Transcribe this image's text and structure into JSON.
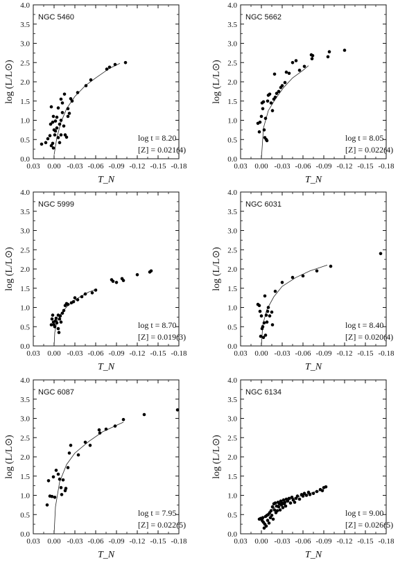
{
  "chart_data": [
    {
      "type": "scatter",
      "title": "NGC 5460",
      "xlabel": "T_N",
      "ylabel": "log (L/L⊙)",
      "xlim": [
        0.03,
        -0.18
      ],
      "ylim": [
        0.0,
        4.0
      ],
      "xticks": [
        "0.03",
        "0.00",
        "-0.03",
        "-0.06",
        "-0.09",
        "-0.12",
        "-0.15",
        "-0.18"
      ],
      "yticks": [
        "0.0",
        "0.5",
        "1.0",
        "1.5",
        "2.0",
        "2.5",
        "3.0",
        "3.5",
        "4.0"
      ],
      "annotation": {
        "age_label": "log t = 8.20",
        "z_label": "[Z] = 0.021(4)"
      },
      "points": [
        [
          0.018,
          0.38
        ],
        [
          0.012,
          0.42
        ],
        [
          0.009,
          0.52
        ],
        [
          0.006,
          0.6
        ],
        [
          0.004,
          0.34
        ],
        [
          0.001,
          0.28
        ],
        [
          -0.001,
          0.62
        ],
        [
          0.002,
          0.4
        ],
        [
          0.005,
          0.9
        ],
        [
          0.002,
          0.95
        ],
        [
          0.0,
          0.75
        ],
        [
          -0.002,
          0.98
        ],
        [
          -0.004,
          0.8
        ],
        [
          -0.006,
          0.55
        ],
        [
          -0.008,
          0.9
        ],
        [
          -0.01,
          1.0
        ],
        [
          -0.012,
          1.2
        ],
        [
          -0.014,
          0.85
        ],
        [
          -0.016,
          0.62
        ],
        [
          -0.018,
          0.56
        ],
        [
          -0.01,
          0.62
        ],
        [
          -0.008,
          0.42
        ],
        [
          -0.006,
          1.32
        ],
        [
          -0.012,
          1.45
        ],
        [
          -0.015,
          1.68
        ],
        [
          0.004,
          1.35
        ],
        [
          0.001,
          1.1
        ],
        [
          -0.004,
          1.08
        ],
        [
          -0.01,
          1.55
        ],
        [
          -0.02,
          1.3
        ],
        [
          -0.022,
          1.18
        ],
        [
          -0.024,
          1.56
        ],
        [
          -0.026,
          1.5
        ],
        [
          -0.02,
          1.1
        ],
        [
          -0.002,
          0.72
        ],
        [
          -0.034,
          1.72
        ],
        [
          -0.046,
          1.9
        ],
        [
          -0.053,
          2.05
        ],
        [
          -0.076,
          2.33
        ],
        [
          -0.08,
          2.38
        ],
        [
          -0.088,
          2.45
        ],
        [
          -0.103,
          2.5
        ]
      ],
      "curve": [
        [
          0.0,
          0.1
        ],
        [
          -0.004,
          0.55
        ],
        [
          -0.01,
          0.95
        ],
        [
          -0.018,
          1.3
        ],
        [
          -0.03,
          1.62
        ],
        [
          -0.045,
          1.9
        ],
        [
          -0.06,
          2.1
        ],
        [
          -0.08,
          2.35
        ],
        [
          -0.095,
          2.48
        ]
      ]
    },
    {
      "type": "scatter",
      "title": "NGC 5662",
      "xlabel": "T_N",
      "ylabel": "log (L/L⊙)",
      "xlim": [
        0.03,
        -0.18
      ],
      "ylim": [
        0.0,
        4.0
      ],
      "xticks": [
        "0.03",
        "0.00",
        "-0.03",
        "-0.06",
        "-0.09",
        "-0.12",
        "-0.15",
        "-0.18"
      ],
      "yticks": [
        "0.0",
        "0.5",
        "1.0",
        "1.5",
        "2.0",
        "2.5",
        "3.0",
        "3.5",
        "4.0"
      ],
      "annotation": {
        "age_label": "log t = 8.05",
        "z_label": "[Z] = 0.022(4)"
      },
      "points": [
        [
          0.005,
          0.92
        ],
        [
          0.003,
          0.7
        ],
        [
          0.002,
          0.95
        ],
        [
          0.0,
          1.1
        ],
        [
          -0.002,
          1.3
        ],
        [
          -0.001,
          1.45
        ],
        [
          -0.003,
          1.48
        ],
        [
          -0.004,
          0.75
        ],
        [
          -0.005,
          0.55
        ],
        [
          -0.007,
          0.5
        ],
        [
          -0.008,
          0.47
        ],
        [
          -0.006,
          1.05
        ],
        [
          -0.009,
          1.5
        ],
        [
          -0.01,
          1.65
        ],
        [
          -0.012,
          1.68
        ],
        [
          -0.014,
          1.45
        ],
        [
          -0.016,
          1.25
        ],
        [
          -0.018,
          1.55
        ],
        [
          -0.02,
          1.6
        ],
        [
          -0.022,
          1.7
        ],
        [
          -0.019,
          2.2
        ],
        [
          -0.025,
          1.75
        ],
        [
          -0.028,
          1.85
        ],
        [
          -0.03,
          1.9
        ],
        [
          -0.034,
          1.98
        ],
        [
          -0.036,
          2.25
        ],
        [
          -0.04,
          2.22
        ],
        [
          -0.045,
          2.5
        ],
        [
          -0.05,
          2.55
        ],
        [
          -0.055,
          2.3
        ],
        [
          -0.062,
          2.4
        ],
        [
          -0.072,
          2.7
        ],
        [
          -0.074,
          2.68
        ],
        [
          -0.073,
          2.6
        ],
        [
          -0.096,
          2.65
        ],
        [
          -0.098,
          2.78
        ],
        [
          -0.12,
          2.82
        ]
      ],
      "curve": [
        [
          0.0,
          0.0
        ],
        [
          -0.003,
          0.8
        ],
        [
          -0.01,
          1.25
        ],
        [
          -0.02,
          1.55
        ],
        [
          -0.032,
          1.85
        ],
        [
          -0.045,
          2.1
        ],
        [
          -0.06,
          2.3
        ],
        [
          -0.068,
          2.42
        ]
      ]
    },
    {
      "type": "scatter",
      "title": "NGC 5999",
      "xlabel": "T_N",
      "ylabel": "log (L/L⊙)",
      "xlim": [
        0.03,
        -0.18
      ],
      "ylim": [
        0.0,
        4.0
      ],
      "xticks": [
        "0.03",
        "0.00",
        "-0.03",
        "-0.06",
        "-0.09",
        "-0.12",
        "-0.15",
        "-0.18"
      ],
      "yticks": [
        "0.0",
        "0.5",
        "1.0",
        "1.5",
        "2.0",
        "2.5",
        "3.0",
        "3.5",
        "4.0"
      ],
      "annotation": {
        "age_label": "log t = 8.70",
        "z_label": "[Z] = 0.019(3)"
      },
      "points": [
        [
          0.004,
          0.55
        ],
        [
          0.003,
          0.7
        ],
        [
          0.002,
          0.8
        ],
        [
          0.001,
          0.62
        ],
        [
          0.0,
          0.55
        ],
        [
          -0.001,
          0.5
        ],
        [
          -0.002,
          0.65
        ],
        [
          -0.003,
          0.72
        ],
        [
          -0.004,
          0.6
        ],
        [
          -0.006,
          0.45
        ],
        [
          -0.007,
          0.35
        ],
        [
          -0.006,
          0.8
        ],
        [
          -0.008,
          0.7
        ],
        [
          -0.009,
          0.78
        ],
        [
          -0.01,
          0.62
        ],
        [
          -0.012,
          0.85
        ],
        [
          -0.014,
          0.92
        ],
        [
          -0.016,
          1.05
        ],
        [
          -0.018,
          1.1
        ],
        [
          -0.02,
          1.08
        ],
        [
          -0.025,
          1.12
        ],
        [
          -0.028,
          1.15
        ],
        [
          -0.03,
          1.25
        ],
        [
          -0.034,
          1.2
        ],
        [
          -0.04,
          1.28
        ],
        [
          -0.045,
          1.35
        ],
        [
          -0.055,
          1.38
        ],
        [
          -0.06,
          1.45
        ],
        [
          -0.083,
          1.72
        ],
        [
          -0.085,
          1.68
        ],
        [
          -0.09,
          1.65
        ],
        [
          -0.098,
          1.75
        ],
        [
          -0.1,
          1.7
        ],
        [
          -0.12,
          1.85
        ],
        [
          -0.138,
          1.92
        ],
        [
          -0.14,
          1.95
        ]
      ],
      "curve": [
        [
          0.0,
          0.0
        ],
        [
          -0.001,
          0.35
        ],
        [
          -0.004,
          0.62
        ],
        [
          -0.01,
          0.85
        ],
        [
          -0.02,
          1.05
        ],
        [
          -0.035,
          1.25
        ],
        [
          -0.05,
          1.4
        ],
        [
          -0.062,
          1.48
        ]
      ]
    },
    {
      "type": "scatter",
      "title": "NGC 6031",
      "xlabel": "T_N",
      "ylabel": "log (L/L⊙)",
      "xlim": [
        0.03,
        -0.18
      ],
      "ylim": [
        0.0,
        4.0
      ],
      "xticks": [
        "0.03",
        "0.00",
        "-0.03",
        "-0.06",
        "-0.09",
        "-0.12",
        "-0.15",
        "-0.18"
      ],
      "yticks": [
        "0.0",
        "0.5",
        "1.0",
        "1.5",
        "2.0",
        "2.5",
        "3.0",
        "3.5",
        "4.0"
      ],
      "annotation": {
        "age_label": "log t = 8.40",
        "z_label": "[Z] = 0.020(4)"
      },
      "points": [
        [
          0.005,
          1.08
        ],
        [
          0.003,
          1.05
        ],
        [
          0.002,
          0.9
        ],
        [
          0.001,
          0.25
        ],
        [
          0.0,
          0.78
        ],
        [
          -0.001,
          0.45
        ],
        [
          -0.002,
          0.5
        ],
        [
          -0.003,
          0.22
        ],
        [
          -0.004,
          0.6
        ],
        [
          -0.005,
          1.3
        ],
        [
          -0.006,
          0.28
        ],
        [
          -0.007,
          0.8
        ],
        [
          -0.008,
          0.62
        ],
        [
          -0.009,
          0.9
        ],
        [
          -0.01,
          1.0
        ],
        [
          -0.012,
          0.78
        ],
        [
          -0.015,
          0.88
        ],
        [
          -0.016,
          0.55
        ],
        [
          -0.02,
          1.42
        ],
        [
          -0.03,
          1.65
        ],
        [
          -0.045,
          1.78
        ],
        [
          -0.06,
          1.82
        ],
        [
          -0.08,
          1.95
        ],
        [
          -0.1,
          2.07
        ],
        [
          -0.172,
          2.4
        ]
      ],
      "curve": [
        [
          0.0,
          0.0
        ],
        [
          -0.002,
          0.55
        ],
        [
          -0.008,
          0.95
        ],
        [
          -0.018,
          1.28
        ],
        [
          -0.03,
          1.55
        ],
        [
          -0.05,
          1.78
        ],
        [
          -0.07,
          1.95
        ],
        [
          -0.095,
          2.1
        ]
      ]
    },
    {
      "type": "scatter",
      "title": "NGC 6087",
      "xlabel": "T_N",
      "ylabel": "log (L/L⊙)",
      "xlim": [
        0.03,
        -0.18
      ],
      "ylim": [
        0.0,
        4.0
      ],
      "xticks": [
        "0.03",
        "0.00",
        "-0.03",
        "-0.06",
        "-0.09",
        "-0.12",
        "-0.15",
        "-0.18"
      ],
      "yticks": [
        "0.0",
        "0.5",
        "1.0",
        "1.5",
        "2.0",
        "2.5",
        "3.0",
        "3.5",
        "4.0"
      ],
      "annotation": {
        "age_label": "log t = 7.95",
        "z_label": "[Z] = 0.022(5)"
      },
      "points": [
        [
          0.01,
          0.75
        ],
        [
          0.008,
          1.38
        ],
        [
          0.006,
          0.98
        ],
        [
          0.003,
          0.97
        ],
        [
          0.001,
          1.48
        ],
        [
          -0.001,
          0.95
        ],
        [
          -0.003,
          1.65
        ],
        [
          -0.006,
          1.55
        ],
        [
          -0.008,
          1.42
        ],
        [
          -0.01,
          1.2
        ],
        [
          -0.011,
          1.02
        ],
        [
          -0.013,
          1.4
        ],
        [
          -0.016,
          1.12
        ],
        [
          -0.017,
          1.18
        ],
        [
          -0.02,
          1.72
        ],
        [
          -0.022,
          2.1
        ],
        [
          -0.024,
          2.3
        ],
        [
          -0.035,
          2.05
        ],
        [
          -0.045,
          2.38
        ],
        [
          -0.052,
          2.3
        ],
        [
          -0.065,
          2.7
        ],
        [
          -0.066,
          2.62
        ],
        [
          -0.075,
          2.72
        ],
        [
          -0.088,
          2.8
        ],
        [
          -0.1,
          2.97
        ],
        [
          -0.13,
          3.1
        ],
        [
          -0.178,
          3.22
        ]
      ],
      "curve": [
        [
          0.0,
          0.0
        ],
        [
          -0.002,
          0.7
        ],
        [
          -0.008,
          1.35
        ],
        [
          -0.018,
          1.8
        ],
        [
          -0.03,
          2.1
        ],
        [
          -0.05,
          2.4
        ],
        [
          -0.07,
          2.65
        ],
        [
          -0.09,
          2.82
        ],
        [
          -0.1,
          2.9
        ]
      ]
    },
    {
      "type": "scatter",
      "title": "NGC 6134",
      "xlabel": "T_N",
      "ylabel": "log (L/L⊙)",
      "xlim": [
        0.03,
        -0.18
      ],
      "ylim": [
        0.0,
        4.0
      ],
      "xticks": [
        "0.03",
        "0.00",
        "-0.03",
        "-0.06",
        "-0.09",
        "-0.12",
        "-0.15",
        "-0.18"
      ],
      "yticks": [
        "0.0",
        "0.5",
        "1.0",
        "1.5",
        "2.0",
        "2.5",
        "3.0",
        "3.5",
        "4.0"
      ],
      "annotation": {
        "age_label": "log t = 9.00",
        "z_label": "[Z] = 0.026(5)"
      },
      "points": [
        [
          0.003,
          0.38
        ],
        [
          0.001,
          0.4
        ],
        [
          -0.001,
          0.35
        ],
        [
          -0.002,
          0.42
        ],
        [
          -0.003,
          0.3
        ],
        [
          -0.004,
          0.15
        ],
        [
          -0.005,
          0.25
        ],
        [
          -0.006,
          0.45
        ],
        [
          -0.007,
          0.2
        ],
        [
          -0.008,
          0.48
        ],
        [
          -0.009,
          0.35
        ],
        [
          -0.01,
          0.5
        ],
        [
          -0.011,
          0.28
        ],
        [
          -0.012,
          0.55
        ],
        [
          -0.013,
          0.42
        ],
        [
          -0.014,
          0.6
        ],
        [
          -0.015,
          0.48
        ],
        [
          -0.016,
          0.7
        ],
        [
          -0.017,
          0.38
        ],
        [
          -0.018,
          0.78
        ],
        [
          -0.019,
          0.62
        ],
        [
          -0.02,
          0.8
        ],
        [
          -0.021,
          0.55
        ],
        [
          -0.022,
          0.72
        ],
        [
          -0.023,
          0.6
        ],
        [
          -0.024,
          0.82
        ],
        [
          -0.025,
          0.7
        ],
        [
          -0.026,
          0.78
        ],
        [
          -0.027,
          0.62
        ],
        [
          -0.028,
          0.85
        ],
        [
          -0.029,
          0.75
        ],
        [
          -0.03,
          0.8
        ],
        [
          -0.031,
          0.68
        ],
        [
          -0.032,
          0.88
        ],
        [
          -0.033,
          0.78
        ],
        [
          -0.034,
          0.82
        ],
        [
          -0.035,
          0.72
        ],
        [
          -0.036,
          0.9
        ],
        [
          -0.038,
          0.85
        ],
        [
          -0.04,
          0.92
        ],
        [
          -0.042,
          0.8
        ],
        [
          -0.044,
          0.95
        ],
        [
          -0.046,
          0.88
        ],
        [
          -0.048,
          0.82
        ],
        [
          -0.05,
          0.92
        ],
        [
          -0.052,
          0.98
        ],
        [
          -0.055,
          0.9
        ],
        [
          -0.058,
          1.02
        ],
        [
          -0.06,
          0.98
        ],
        [
          -0.062,
          1.05
        ],
        [
          -0.065,
          1.0
        ],
        [
          -0.068,
          1.08
        ],
        [
          -0.07,
          1.02
        ],
        [
          -0.075,
          1.05
        ],
        [
          -0.08,
          1.1
        ],
        [
          -0.085,
          1.15
        ],
        [
          -0.088,
          1.12
        ],
        [
          -0.09,
          1.2
        ],
        [
          -0.093,
          1.22
        ]
      ],
      "curve": [
        [
          0.0,
          0.3
        ],
        [
          -0.005,
          0.45
        ],
        [
          -0.012,
          0.58
        ],
        [
          -0.02,
          0.7
        ],
        [
          -0.032,
          0.82
        ],
        [
          -0.045,
          0.92
        ],
        [
          -0.06,
          1.0
        ],
        [
          -0.075,
          1.08
        ],
        [
          -0.09,
          1.15
        ]
      ]
    }
  ]
}
